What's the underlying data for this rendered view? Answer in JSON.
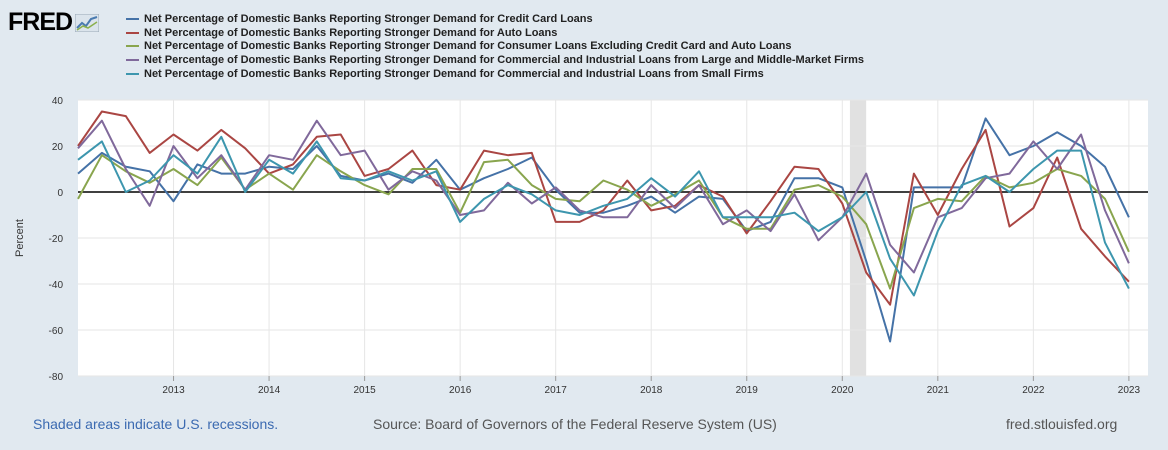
{
  "header": {
    "logo_text": "FRED"
  },
  "footer": {
    "recession_note": "Shaded areas indicate U.S. recessions.",
    "source": "Source: Board of Governors of the Federal Reserve System (US)",
    "site": "fred.stlouisfed.org"
  },
  "chart_data": {
    "type": "line",
    "title": "",
    "xlabel": "",
    "ylabel": "Percent",
    "ylim": [
      -80,
      40
    ],
    "yticks": [
      40,
      20,
      0,
      -20,
      -40,
      -60,
      -80
    ],
    "xlim": [
      2012.0,
      2023.2
    ],
    "xticks": [
      2013,
      2014,
      2015,
      2016,
      2017,
      2018,
      2019,
      2020,
      2021,
      2022,
      2023
    ],
    "recession_band": [
      2020.08,
      2020.25
    ],
    "x": [
      2012.0,
      2012.25,
      2012.5,
      2012.75,
      2013.0,
      2013.25,
      2013.5,
      2013.75,
      2014.0,
      2014.25,
      2014.5,
      2014.75,
      2015.0,
      2015.25,
      2015.5,
      2015.75,
      2016.0,
      2016.25,
      2016.5,
      2016.75,
      2017.0,
      2017.25,
      2017.5,
      2017.75,
      2018.0,
      2018.25,
      2018.5,
      2018.75,
      2019.0,
      2019.25,
      2019.5,
      2019.75,
      2020.0,
      2020.25,
      2020.5,
      2020.75,
      2021.0,
      2021.25,
      2021.5,
      2021.75,
      2022.0,
      2022.25,
      2022.5,
      2022.75,
      2023.0
    ],
    "series": [
      {
        "name": "Net Percentage of Domestic Banks Reporting Stronger Demand for Credit Card Loans",
        "color": "#4572a7",
        "values": [
          8,
          17,
          11,
          9,
          -4,
          12,
          8,
          8,
          11,
          10,
          20,
          7,
          5,
          8,
          4,
          14,
          1,
          6,
          10,
          15,
          1,
          -9,
          -9,
          -6,
          -2,
          -9,
          -2,
          -3,
          -17,
          -13,
          6,
          6,
          2,
          -30,
          -65,
          2,
          2,
          2,
          32,
          16,
          20,
          26,
          20,
          11,
          -11
        ]
      },
      {
        "name": "Net Percentage of Domestic Banks Reporting Stronger Demand for Auto Loans",
        "color": "#aa4643",
        "values": [
          20,
          35,
          33,
          17,
          25,
          18,
          27,
          19,
          8,
          12,
          24,
          25,
          7,
          10,
          18,
          3,
          1,
          18,
          16,
          17,
          -13,
          -13,
          -8,
          5,
          -8,
          -6,
          3,
          -2,
          -18,
          -4,
          11,
          10,
          -5,
          -35,
          -49,
          8,
          -10,
          10,
          27,
          -15,
          -7,
          15,
          -16,
          -28,
          -39
        ]
      },
      {
        "name": "Net Percentage of Domestic Banks Reporting Stronger Demand for Consumer Loans Excluding Credit Card and Auto Loans",
        "color": "#89a54e",
        "values": [
          -3,
          16,
          9,
          4,
          10,
          3,
          15,
          1,
          8,
          1,
          16,
          9,
          3,
          -1,
          10,
          10,
          -9,
          13,
          14,
          3,
          -3,
          -4,
          5,
          1,
          -6,
          -1,
          5,
          -11,
          -16,
          -16,
          1,
          3,
          -2,
          -14,
          -42,
          -7,
          -3,
          -4,
          7,
          2,
          4,
          10,
          7,
          -3,
          -26
        ]
      },
      {
        "name": "Net Percentage of Domestic Banks Reporting Stronger Demand for Commercial and Industrial Loans from Large and Middle-Market Firms",
        "color": "#80699b",
        "values": [
          19,
          31,
          10,
          -6,
          20,
          6,
          16,
          1,
          16,
          14,
          31,
          16,
          18,
          1,
          9,
          5,
          -10,
          -8,
          4,
          -5,
          2,
          -8,
          -11,
          -11,
          3,
          -7,
          3,
          -14,
          -8,
          -17,
          -1,
          -21,
          -11,
          8,
          -23,
          -35,
          -11,
          -7,
          6,
          8,
          22,
          10,
          25,
          -8,
          -31
        ]
      },
      {
        "name": "Net Percentage of Domestic Banks Reporting Stronger Demand for Commercial and Industrial Loans from Small Firms",
        "color": "#3d96ae",
        "values": [
          14,
          22,
          0,
          5,
          16,
          8,
          24,
          0,
          14,
          8,
          22,
          6,
          5,
          9,
          5,
          9,
          -13,
          -3,
          3,
          -1,
          -8,
          -10,
          -6,
          -3,
          6,
          -2,
          9,
          -11,
          -11,
          -11,
          -9,
          -17,
          -11,
          0,
          -29,
          -45,
          -17,
          3,
          7,
          0,
          10,
          18,
          18,
          -22,
          -42
        ]
      }
    ]
  }
}
